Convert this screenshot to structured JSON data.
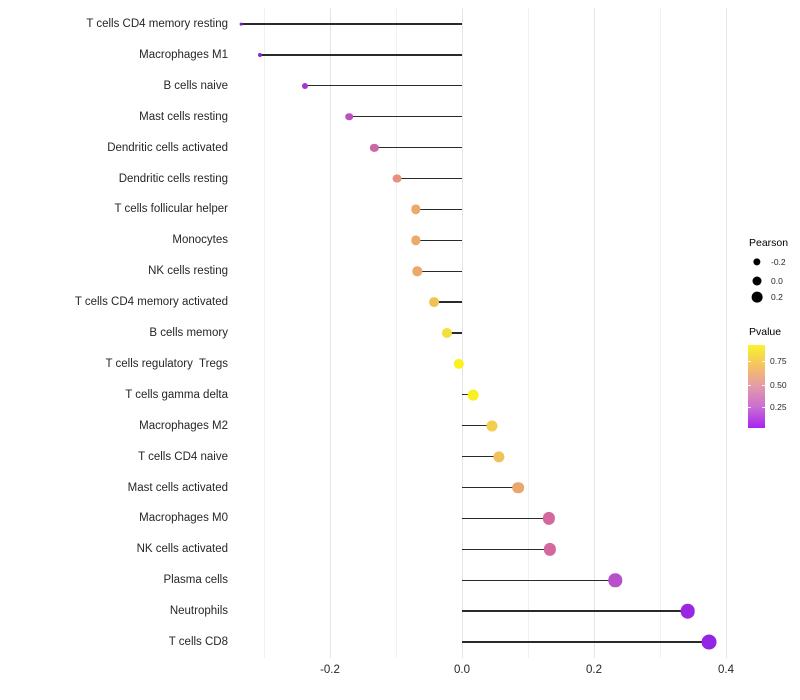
{
  "chart_data": {
    "type": "scatter",
    "variant": "lollipop",
    "title": "",
    "xlabel": "",
    "ylabel": "",
    "xlim": [
      -0.35,
      0.45
    ],
    "x_ticks": [
      -0.2,
      0.0,
      0.2,
      0.4
    ],
    "x_tick_labels": [
      "-0.2",
      "0.0",
      "0.2",
      "0.4"
    ],
    "x_minor_gridlines": [
      -0.3,
      -0.1,
      0.1,
      0.3
    ],
    "grid": "vertical gridlines only, light gray, white background",
    "stem_baseline_x": 0.0,
    "points": [
      {
        "label": "T cells CD4 memory resting",
        "pearson": -0.335,
        "color": "#7a20cf"
      },
      {
        "label": "Macrophages M1",
        "pearson": -0.306,
        "color": "#8824dc"
      },
      {
        "label": "B cells naive",
        "pearson": -0.238,
        "color": "#a136d6"
      },
      {
        "label": "Mast cells resting",
        "pearson": -0.171,
        "color": "#bd4fc5"
      },
      {
        "label": "Dendritic cells activated",
        "pearson": -0.133,
        "color": "#c968a5"
      },
      {
        "label": "Dendritic cells resting",
        "pearson": -0.098,
        "color": "#e7907f"
      },
      {
        "label": "T cells follicular helper",
        "pearson": -0.07,
        "color": "#ecaa6a"
      },
      {
        "label": "Monocytes",
        "pearson": -0.07,
        "color": "#ecaa6a"
      },
      {
        "label": "NK cells resting",
        "pearson": -0.068,
        "color": "#ecaa6a"
      },
      {
        "label": "T cells CD4 memory activated",
        "pearson": -0.042,
        "color": "#f0c254"
      },
      {
        "label": "B cells memory",
        "pearson": -0.023,
        "color": "#f4e03c"
      },
      {
        "label": "T cells regulatory  Tregs",
        "pearson": -0.005,
        "color": "#f9f21d"
      },
      {
        "label": "T cells gamma delta",
        "pearson": 0.017,
        "color": "#f9f021"
      },
      {
        "label": "Macrophages M2",
        "pearson": 0.045,
        "color": "#f2ce4d"
      },
      {
        "label": "T cells CD4 naive",
        "pearson": 0.056,
        "color": "#f0c25b"
      },
      {
        "label": "Mast cells activated",
        "pearson": 0.085,
        "color": "#eba66b"
      },
      {
        "label": "Macrophages M0",
        "pearson": 0.132,
        "color": "#d4679e"
      },
      {
        "label": "NK cells activated",
        "pearson": 0.133,
        "color": "#d4679e"
      },
      {
        "label": "Plasma cells",
        "pearson": 0.232,
        "color": "#b84fcb"
      },
      {
        "label": "Neutrophils",
        "pearson": 0.342,
        "color": "#9a27e2"
      },
      {
        "label": "T cells CD8",
        "pearson": 0.374,
        "color": "#9326e4"
      }
    ],
    "legend": {
      "size": {
        "title": "Pearson",
        "entries": [
          {
            "label": "-0.2",
            "value": -0.2
          },
          {
            "label": "0.0",
            "value": 0.0
          },
          {
            "label": "0.2",
            "value": 0.2
          }
        ]
      },
      "color": {
        "title": "Pvalue",
        "tick_labels": [
          "0.75",
          "0.50",
          "0.25"
        ],
        "gradient_top_to_bottom": [
          "#f9f32b",
          "#f5c263",
          "#e39aa9",
          "#c96ed3",
          "#a724f0"
        ]
      }
    }
  }
}
